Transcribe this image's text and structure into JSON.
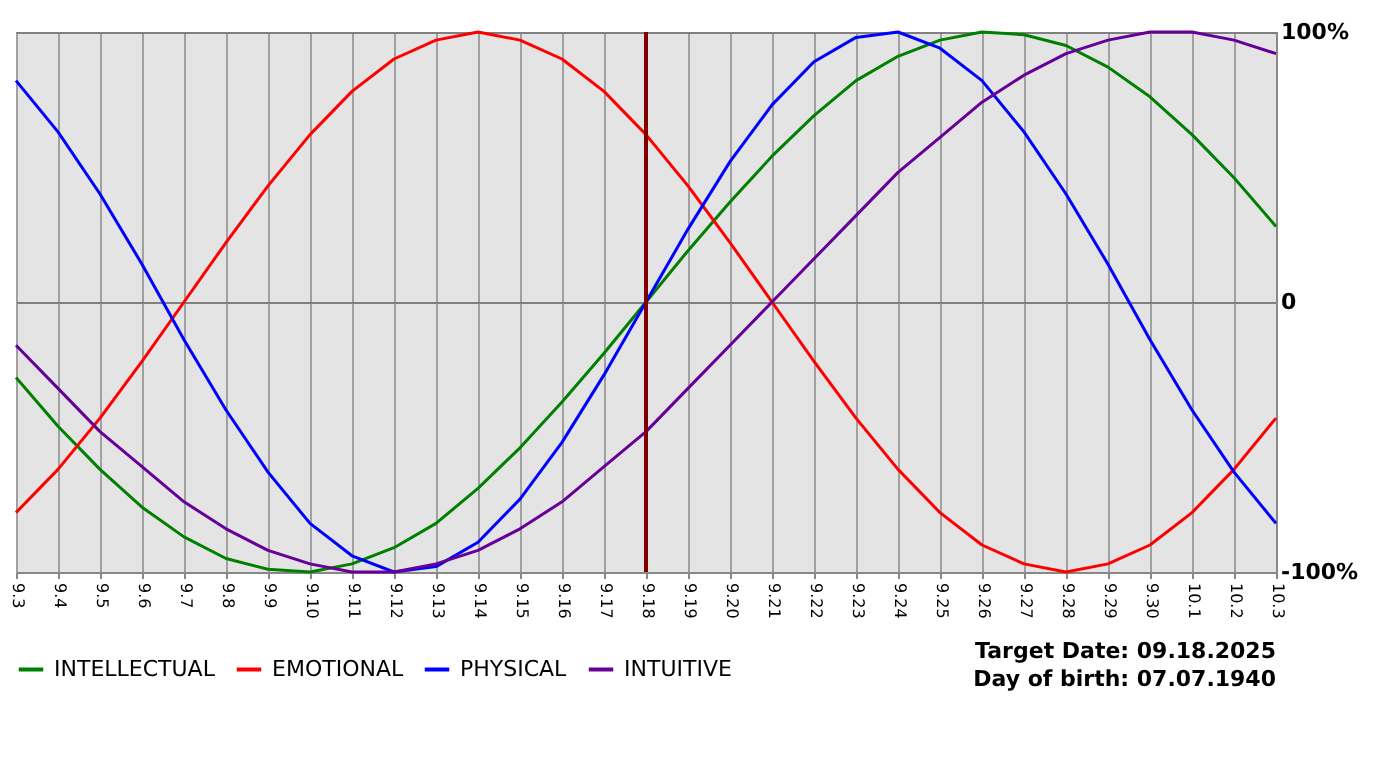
{
  "chart_data": {
    "type": "line",
    "categories": [
      "9.3",
      "9.4",
      "9.5",
      "9.6",
      "9.7",
      "9.8",
      "9.9",
      "9.10",
      "9.11",
      "9.12",
      "9.13",
      "9.14",
      "9.15",
      "9.16",
      "9.17",
      "9.18",
      "9.19",
      "9.20",
      "9.21",
      "9.22",
      "9.23",
      "9.24",
      "9.25",
      "9.26",
      "9.27",
      "9.28",
      "9.29",
      "9.30",
      "10.1",
      "10.2",
      "10.3"
    ],
    "series": [
      {
        "name": "INTELLECTUAL",
        "color": "#008000",
        "values": [
          -28,
          -46,
          -62,
          -76,
          -87,
          -95,
          -99,
          -100,
          -97,
          -91,
          -82,
          -69,
          -54,
          -37,
          -19,
          0,
          19,
          37,
          54,
          69,
          82,
          91,
          97,
          100,
          99,
          95,
          87,
          76,
          62,
          46,
          28
        ]
      },
      {
        "name": "EMOTIONAL",
        "color": "#ff0000",
        "values": [
          -78,
          -62,
          -43,
          -22,
          0,
          22,
          43,
          62,
          78,
          90,
          97,
          100,
          97,
          90,
          78,
          62,
          43,
          22,
          0,
          -22,
          -43,
          -62,
          -78,
          -90,
          -97,
          -100,
          -97,
          -90,
          -78,
          -62,
          -43
        ]
      },
      {
        "name": "PHYSICAL",
        "color": "#0000ff",
        "values": [
          82,
          63,
          40,
          14,
          -14,
          -40,
          -63,
          -82,
          -94,
          -100,
          -98,
          -89,
          -73,
          -52,
          -27,
          0,
          27,
          52,
          73,
          89,
          98,
          100,
          94,
          82,
          63,
          40,
          14,
          -14,
          -40,
          -63,
          -82
        ]
      },
      {
        "name": "INTUITIVE",
        "color": "#660099",
        "values": [
          -16,
          -32,
          -48,
          -61,
          -74,
          -84,
          -92,
          -97,
          -100,
          -100,
          -97,
          -92,
          -84,
          -74,
          -61,
          -48,
          -32,
          -16,
          0,
          16,
          32,
          48,
          61,
          74,
          84,
          92,
          97,
          100,
          100,
          97,
          92
        ]
      }
    ],
    "ylim": [
      -100,
      100
    ],
    "yticks": [
      {
        "value": -100,
        "label": "-100%"
      },
      0,
      {
        "value": 100,
        "label": "100%"
      }
    ],
    "ref_lines": [
      {
        "axis": "x",
        "value": "9.18",
        "color": "#800000"
      }
    ],
    "annotations": [
      "Target Date: 09.18.2025",
      "Day of birth: 07.07.1940"
    ],
    "grid": true,
    "legend": "bottom left"
  }
}
